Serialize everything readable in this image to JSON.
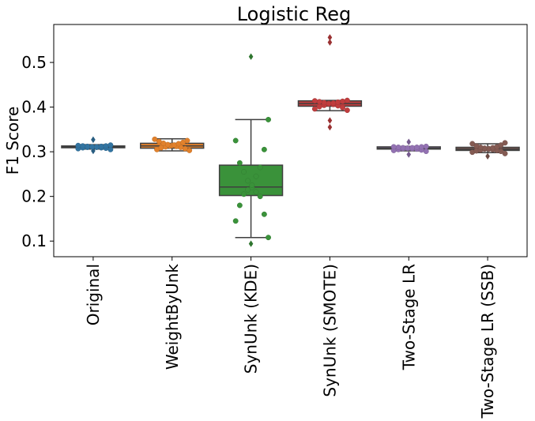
{
  "chart_data": {
    "type": "box",
    "title": "Logistic Reg",
    "xlabel": "",
    "ylabel": "F1 Score",
    "ylim": [
      0.065,
      0.585
    ],
    "yticks": [
      0.1,
      0.2,
      0.3,
      0.4,
      0.5
    ],
    "ytick_labels": [
      "0.1",
      "0.2",
      "0.3",
      "0.4",
      "0.5"
    ],
    "grid": false,
    "categories": [
      "Original",
      "WeightByUnk",
      "SynUnk (KDE)",
      "SynUnk (SMOTE)",
      "Two-Stage LR",
      "Two-Stage LR (SSB)"
    ],
    "series": [
      {
        "category": "Original",
        "color": "#3274a1",
        "box": {
          "whisker_low": 0.306,
          "q1": 0.309,
          "median": 0.311,
          "q3": 0.313,
          "whisker_high": 0.316
        },
        "outliers": [
          0.327,
          0.302
        ],
        "points": [
          0.305,
          0.307,
          0.308,
          0.309,
          0.309,
          0.31,
          0.31,
          0.311,
          0.311,
          0.311,
          0.312,
          0.312,
          0.313,
          0.313,
          0.314,
          0.315
        ]
      },
      {
        "category": "WeightByUnk",
        "color": "#e1812c",
        "box": {
          "whisker_low": 0.302,
          "q1": 0.308,
          "median": 0.313,
          "q3": 0.319,
          "whisker_high": 0.329
        },
        "outliers": [],
        "points": [
          0.303,
          0.305,
          0.307,
          0.309,
          0.31,
          0.311,
          0.312,
          0.313,
          0.314,
          0.315,
          0.316,
          0.318,
          0.319,
          0.321,
          0.323,
          0.325,
          0.328
        ]
      },
      {
        "category": "SynUnk (KDE)",
        "color": "#3a923a",
        "box": {
          "whisker_low": 0.108,
          "q1": 0.202,
          "median": 0.221,
          "q3": 0.27,
          "whisker_high": 0.372
        },
        "outliers": [
          0.513,
          0.094
        ],
        "points": [
          0.108,
          0.145,
          0.16,
          0.18,
          0.2,
          0.205,
          0.21,
          0.215,
          0.22,
          0.225,
          0.235,
          0.245,
          0.255,
          0.265,
          0.275,
          0.305,
          0.325,
          0.372
        ]
      },
      {
        "category": "SynUnk (SMOTE)",
        "color": "#c03d3e",
        "box": {
          "whisker_low": 0.392,
          "q1": 0.402,
          "median": 0.408,
          "q3": 0.414,
          "whisker_high": 0.415
        },
        "outliers": [
          0.556,
          0.545,
          0.37,
          0.355
        ],
        "points": [
          0.393,
          0.396,
          0.399,
          0.401,
          0.403,
          0.404,
          0.406,
          0.407,
          0.408,
          0.409,
          0.41,
          0.411,
          0.412,
          0.413,
          0.414,
          0.415
        ]
      },
      {
        "category": "Two-Stage LR",
        "color": "#9372b2",
        "box": {
          "whisker_low": 0.302,
          "q1": 0.306,
          "median": 0.308,
          "q3": 0.311,
          "whisker_high": 0.312
        },
        "outliers": [
          0.322,
          0.294
        ],
        "points": [
          0.301,
          0.303,
          0.304,
          0.305,
          0.306,
          0.307,
          0.307,
          0.308,
          0.308,
          0.309,
          0.309,
          0.31,
          0.31,
          0.311,
          0.311,
          0.312
        ]
      },
      {
        "category": "Two-Stage LR (SSB)",
        "color": "#845b53",
        "box": {
          "whisker_low": 0.298,
          "q1": 0.303,
          "median": 0.306,
          "q3": 0.31,
          "whisker_high": 0.318
        },
        "outliers": [
          0.29
        ],
        "points": [
          0.296,
          0.299,
          0.301,
          0.302,
          0.303,
          0.304,
          0.305,
          0.306,
          0.306,
          0.307,
          0.308,
          0.309,
          0.31,
          0.311,
          0.313,
          0.315,
          0.318,
          0.32
        ]
      }
    ]
  }
}
